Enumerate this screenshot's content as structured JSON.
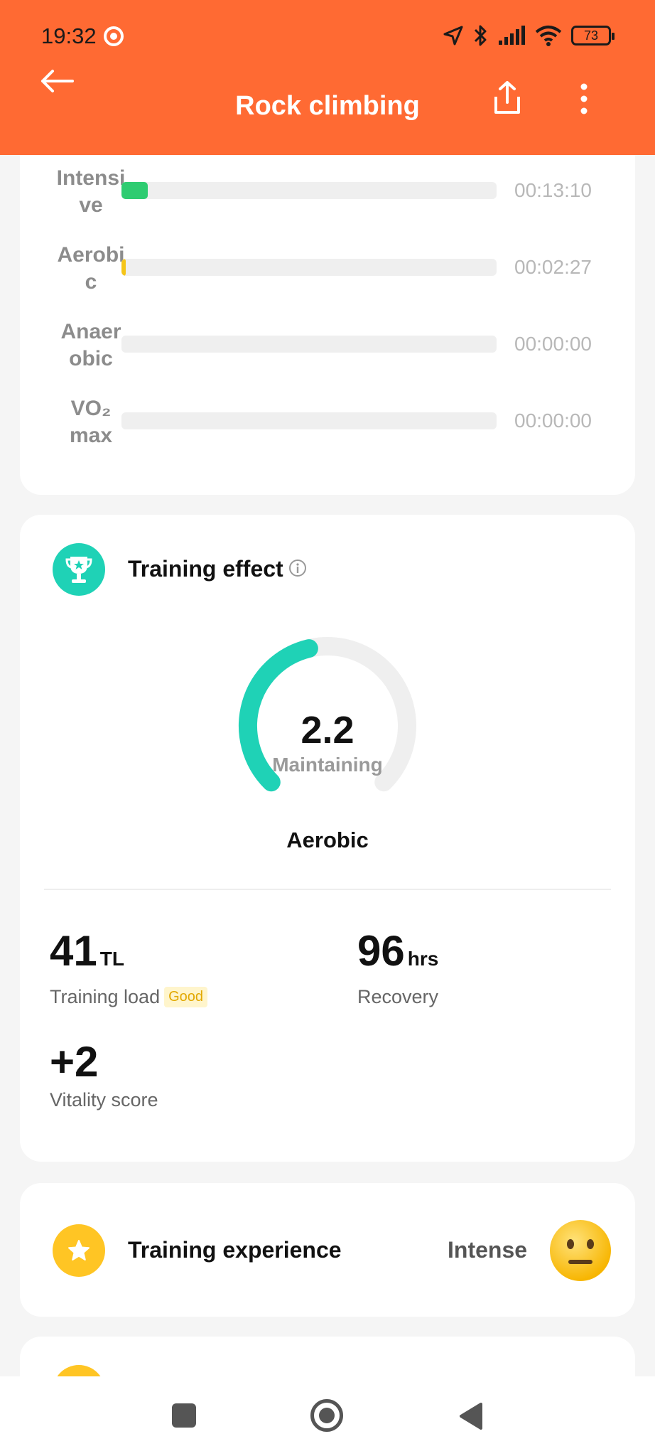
{
  "status_bar": {
    "time": "19:32",
    "battery": "73"
  },
  "header": {
    "title": "Rock climbing"
  },
  "zones": [
    {
      "label": "Intensive",
      "time": "00:13:10",
      "fraction": 0.07,
      "color": "#2ecc71"
    },
    {
      "label": "Aerobic",
      "time": "00:02:27",
      "fraction": 0.012,
      "color": "#f5c518"
    },
    {
      "label": "Anaerobic",
      "time": "00:00:00",
      "fraction": 0,
      "color": "#ff8a3d"
    },
    {
      "label": "VO₂ max",
      "time": "00:00:00",
      "fraction": 0,
      "color": "#ff4d4d"
    }
  ],
  "training_effect": {
    "title": "Training effect",
    "value": "2.2",
    "state": "Maintaining",
    "zone": "Aerobic",
    "gauge_fraction": 0.45,
    "gauge_color": "#1fd2b6",
    "metrics": {
      "training_load": {
        "value": "41",
        "unit": "TL",
        "label": "Training load",
        "badge": "Good"
      },
      "recovery": {
        "value": "96",
        "unit": "hrs",
        "label": "Recovery"
      },
      "vitality": {
        "value": "+2",
        "label": "Vitality score"
      }
    }
  },
  "training_experience": {
    "title": "Training experience",
    "value": "Intense"
  }
}
